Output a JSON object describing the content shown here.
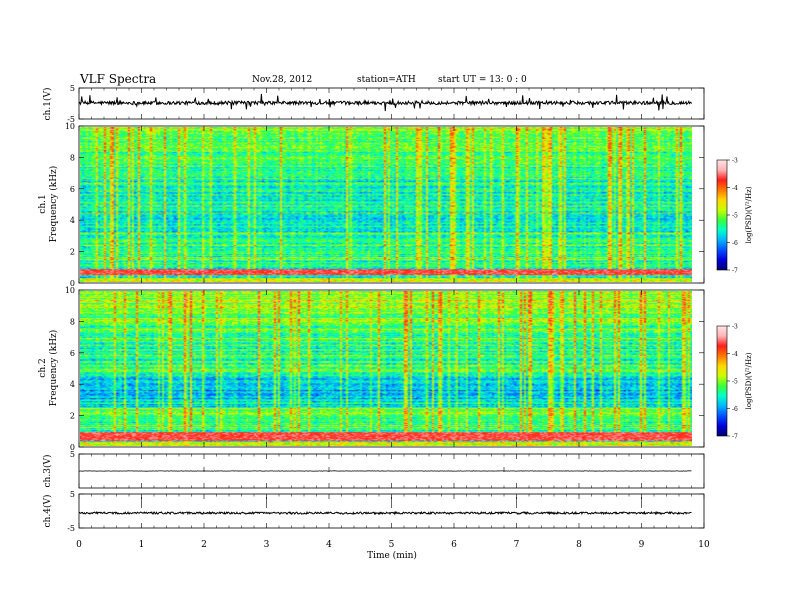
{
  "header": {
    "title": "VLF  Spectra",
    "date": "Nov.28, 2012",
    "station": "station=ATH",
    "start": "start  UT  =    13: 0  : 0"
  },
  "colors": {
    "colormap": [
      "#00006e",
      "#0000d8",
      "#0050ff",
      "#00b4ff",
      "#00ffc8",
      "#3cff3c",
      "#c8ff00",
      "#ffd800",
      "#ff7800",
      "#ff1e1e",
      "#ffb4b4",
      "#ffe6e6"
    ]
  },
  "chart_data": [
    {
      "type": "line",
      "name": "ch1-time-series",
      "ylabel": "ch.1(V)",
      "ylim": [
        -5,
        5
      ],
      "yticks": [
        "5",
        "-5"
      ],
      "xlim": [
        0,
        9.8
      ],
      "baseline": 0.2,
      "noise": 0.55,
      "spike_amplitude": 3.0
    },
    {
      "type": "heatmap",
      "name": "ch1-spectrogram",
      "ylabel": "ch.1\nFrequency  (kHz)",
      "ylabel_lines": [
        "ch.1",
        "Frequency  (kHz)"
      ],
      "ylim": [
        0,
        10
      ],
      "yticks": [
        "0",
        "2",
        "4",
        "6",
        "8",
        "10"
      ],
      "xlim": [
        0,
        9.8
      ],
      "colorbar": {
        "label": "log(PSD)(V²/Hz)",
        "range": [
          -7,
          -3
        ],
        "ticks": [
          "-3",
          "-4",
          "-5",
          "-6",
          "-7"
        ]
      },
      "low_band_khz": [
        0.4,
        0.8
      ],
      "mean_level": -5.6
    },
    {
      "type": "heatmap",
      "name": "ch2-spectrogram",
      "ylabel": "ch.2\nFrequency  (kHz)",
      "ylabel_lines": [
        "ch.2",
        "Frequency  (kHz)"
      ],
      "ylim": [
        0,
        10
      ],
      "yticks": [
        "0",
        "2",
        "4",
        "6",
        "8",
        "10"
      ],
      "xlim": [
        0,
        9.8
      ],
      "colorbar": {
        "label": "log(PSD)(V²/Hz)",
        "range": [
          -7,
          -3
        ],
        "ticks": [
          "-3",
          "-4",
          "-5",
          "-6",
          "-7"
        ]
      },
      "low_band_khz": [
        0.3,
        0.9
      ],
      "mean_level": -5.5
    },
    {
      "type": "line",
      "name": "ch3-time-series",
      "ylabel": "ch.3(V)",
      "ylim": [
        -5,
        5
      ],
      "yticks": [
        "5"
      ],
      "xlim": [
        0,
        9.8
      ],
      "baseline": 0.0,
      "noise": 0.05
    },
    {
      "type": "line",
      "name": "ch4-time-series",
      "ylabel": "ch.4(V)",
      "ylim": [
        -5,
        5
      ],
      "yticks": [
        "5",
        "-5"
      ],
      "xlim": [
        0,
        9.8
      ],
      "baseline": -0.6,
      "noise": 0.3
    }
  ],
  "xaxis": {
    "label": "Time  (min)",
    "range": [
      0,
      10
    ],
    "ticks": [
      "0",
      "1",
      "2",
      "3",
      "4",
      "5",
      "6",
      "7",
      "8",
      "9",
      "10"
    ]
  }
}
